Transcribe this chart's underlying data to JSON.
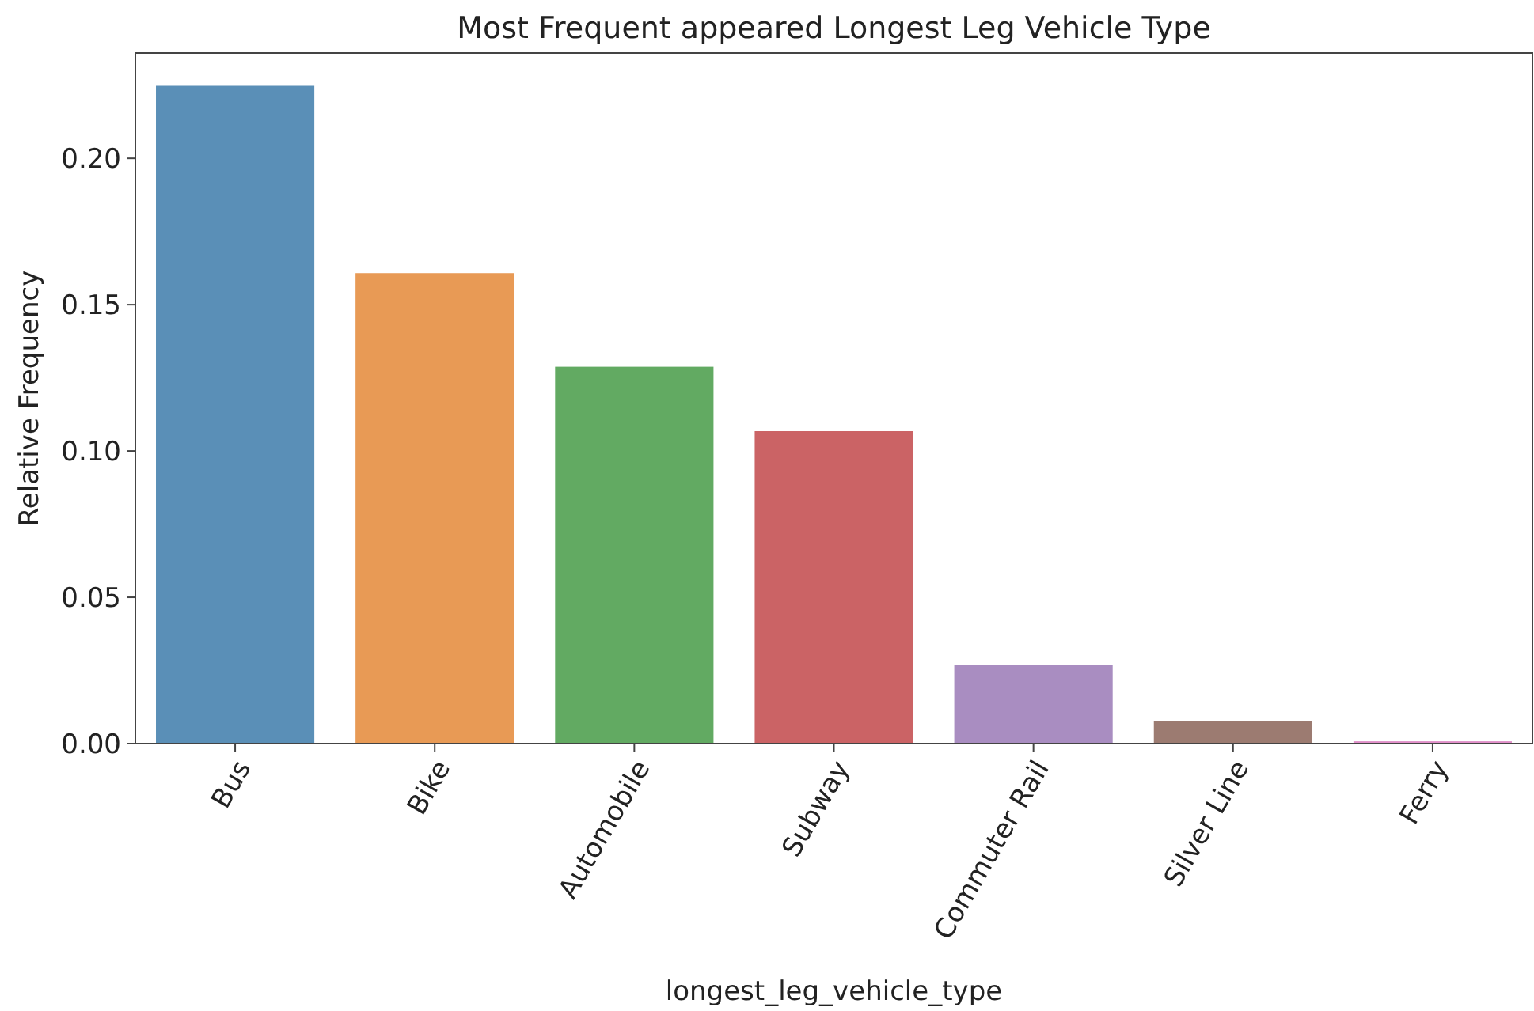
{
  "chart_data": {
    "type": "bar",
    "title": "Most Frequent appeared Longest Leg Vehicle Type",
    "xlabel": "longest_leg_vehicle_type",
    "ylabel": "Relative Frequency",
    "categories": [
      "Bus",
      "Bike",
      "Automobile",
      "Subway",
      "Commuter Rail",
      "Silver Line",
      "Ferry"
    ],
    "values": [
      0.225,
      0.161,
      0.129,
      0.107,
      0.027,
      0.008,
      0.001
    ],
    "colors": [
      "#5a8fb7",
      "#e89a55",
      "#62aa62",
      "#cb6365",
      "#a98dc1",
      "#9c7b71",
      "#e08fc9"
    ],
    "ylim": [
      0,
      0.236
    ],
    "yticks": [
      {
        "value": 0,
        "label": "0.00"
      },
      {
        "value": 0.05,
        "label": "0.05"
      },
      {
        "value": 0.1,
        "label": "0.10"
      },
      {
        "value": 0.15,
        "label": "0.15"
      },
      {
        "value": 0.2,
        "label": "0.20"
      }
    ],
    "grid": false
  }
}
